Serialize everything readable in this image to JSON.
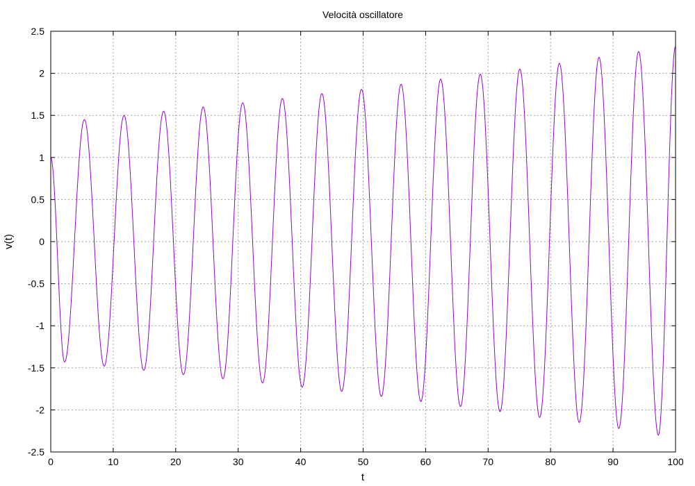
{
  "chart_data": {
    "type": "line",
    "title": "Velocità oscillatore",
    "xlabel": "t",
    "ylabel": "v(t)",
    "xlim": [
      0,
      100
    ],
    "ylim": [
      -2.5,
      2.5
    ],
    "x_ticks": [
      "0",
      "10",
      "20",
      "30",
      "40",
      "50",
      "60",
      "70",
      "80",
      "90",
      "100"
    ],
    "y_ticks": [
      "2.5",
      "2",
      "1.5",
      "1",
      "0.5",
      "0",
      "-0.5",
      "-1",
      "-1.5",
      "-2",
      "-2.5"
    ],
    "grid": true,
    "legend": "none",
    "series": [
      {
        "color": "#9400d3",
        "x": [
          0,
          2.22,
          5.39,
          8.56,
          11.73,
          14.89,
          18.06,
          21.23,
          24.4,
          27.56,
          30.73,
          33.9,
          37.07,
          40.24,
          43.4,
          46.57,
          49.74,
          52.91,
          56.07,
          59.24,
          62.41,
          65.58,
          68.74,
          71.91,
          75.08,
          78.25,
          81.41,
          84.58,
          87.75,
          90.92,
          94.09,
          97.25,
          100
        ],
        "y": [
          1.0,
          -1.43,
          1.45,
          -1.48,
          1.5,
          -1.53,
          1.55,
          -1.58,
          1.6,
          -1.63,
          1.65,
          -1.68,
          1.7,
          -1.73,
          1.76,
          -1.78,
          1.81,
          -1.84,
          1.87,
          -1.9,
          1.93,
          -1.96,
          1.99,
          -2.02,
          2.05,
          -2.09,
          2.12,
          -2.15,
          2.19,
          -2.22,
          2.26,
          -2.3,
          2.32
        ]
      }
    ]
  }
}
